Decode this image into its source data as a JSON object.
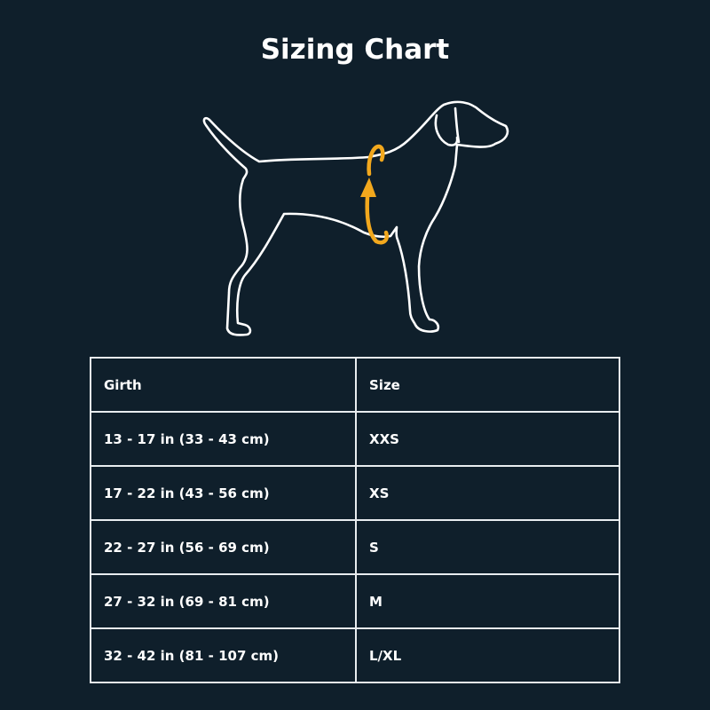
{
  "title": "Sizing Chart",
  "illustration": {
    "subject": "dog-outline",
    "measure_color": "#f2a81d"
  },
  "table": {
    "headers": [
      "Girth",
      "Size"
    ],
    "rows": [
      [
        "13 - 17 in (33 - 43 cm)",
        "XXS"
      ],
      [
        "17 - 22 in (43 - 56 cm)",
        "XS"
      ],
      [
        "22 - 27 in (56 - 69 cm)",
        "S"
      ],
      [
        "27 - 32 in (69 - 81 cm)",
        "M"
      ],
      [
        "32 - 42 in (81 - 107 cm)",
        "L/XL"
      ]
    ]
  }
}
